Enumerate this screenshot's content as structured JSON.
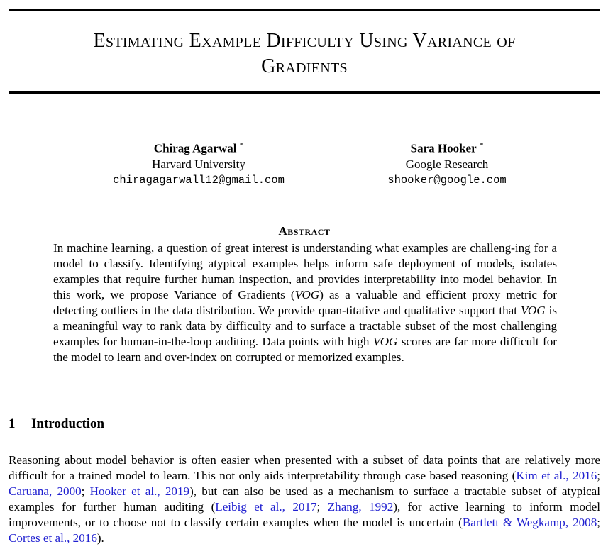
{
  "paper": {
    "title_line1": "Estimating Example Difficulty Using Variance of",
    "title_line2": "Gradients",
    "authors": [
      {
        "name": "Chirag Agarwal",
        "mark": "*",
        "affiliation": "Harvard University",
        "email": "chiragagarwall12@gmail.com"
      },
      {
        "name": "Sara Hooker",
        "mark": "*",
        "affiliation": "Google Research",
        "email": "shooker@google.com"
      }
    ],
    "abstract_heading": "Abstract",
    "abstract": {
      "s1": "In machine learning, a question of great interest is understanding what examples are challeng-ing for a model to classify. Identifying atypical examples helps inform safe deployment of models, isolates examples that require further human inspection, and provides interpretability into model behavior. In this work, we propose Variance of Gradients (",
      "vog1": "VOG",
      "s2": ") as a valuable and efficient proxy metric for detecting outliers in the data distribution. We provide quan-titative and qualitative support that ",
      "vog2": "VOG",
      "s3": " is a meaningful way to rank data by difficulty and to surface a tractable subset of the most challenging examples for human-in-the-loop auditing. Data points with high ",
      "vog3": "VOG",
      "s4": " scores are far more difficult for the model to learn and over-index on corrupted or memorized examples."
    },
    "section": {
      "number": "1",
      "title": "Introduction"
    },
    "intro": {
      "t1": "Reasoning about model behavior is often easier when presented with a subset of data points that are relatively more difficult for a trained model to learn. This not only aids interpretability through case based reasoning (",
      "c1a": "Kim et al.",
      "c1b": "2016",
      "t2": "; ",
      "c2a": "Caruana",
      "c2b": "2000",
      "t3": "; ",
      "c3a": "Hooker et al.",
      "c3b": "2019",
      "t4": "), but can also be used as a mechanism to surface a tractable subset of atypical examples for further human auditing (",
      "c4a": "Leibig et al.",
      "c4b": "2017",
      "t5": "; ",
      "c5a": "Zhang",
      "c5b": "1992",
      "t6": "), for active learning to inform model improvements, or to choose not to classify certain examples when the model is uncertain (",
      "c6a": "Bartlett & Wegkamp",
      "c6b": "2008",
      "t7": "; ",
      "c7a": "Cortes et al.",
      "c7b": "2016",
      "t8": ")."
    },
    "cite_color": "#2020d0"
  }
}
